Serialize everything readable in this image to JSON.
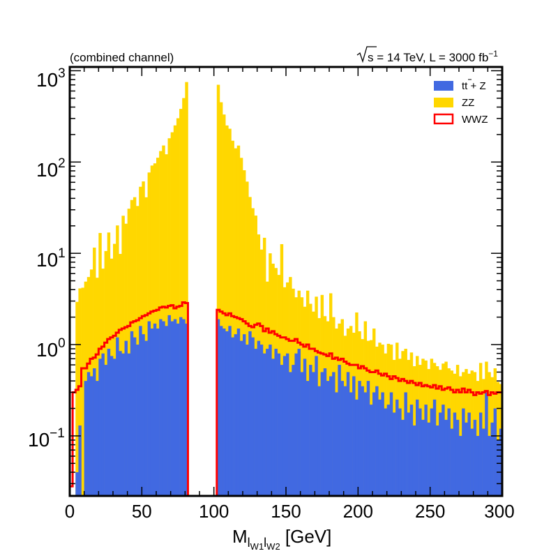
{
  "chart_data": {
    "type": "bar",
    "stacked": true,
    "log_y": true,
    "title_left": "(combined channel)",
    "title_right_prefix": "s",
    "title_right_text": " = 14 TeV, L = 3000 fb",
    "title_right_sup": "−1",
    "xlabel_main": "M",
    "xlabel_sub1": "l",
    "xlabel_subsub1": "W1",
    "xlabel_sub2": "l",
    "xlabel_subsub2": "W2",
    "xlabel_unit": " [GeV]",
    "xlim": [
      0,
      300
    ],
    "ylim": [
      0.022,
      1100
    ],
    "bin_width": 2,
    "x_ticks": [
      "0",
      "50",
      "100",
      "150",
      "200",
      "250",
      "300"
    ],
    "y_ticks": [
      {
        "base": "10",
        "exp": "3"
      },
      {
        "base": "10",
        "exp": "2"
      },
      {
        "base": "10",
        "exp": "1"
      },
      {
        "base": "10",
        "exp": "0"
      },
      {
        "base": "10",
        "exp": "−1"
      }
    ],
    "legend": {
      "position": "top-right",
      "items": [
        {
          "label_a": "t",
          "label_b": "t",
          "label_c": " + Z",
          "color": "#4169e1",
          "kind": "fill"
        },
        {
          "label_a": "ZZ",
          "label_b": "",
          "label_c": "",
          "color": "#ffd700",
          "kind": "fill"
        },
        {
          "label_a": "WWZ",
          "label_b": "",
          "label_c": "",
          "color": "#ff0000",
          "kind": "line"
        }
      ]
    },
    "series": [
      {
        "name": "ttZ",
        "color": "#4169e1",
        "values": [
          0,
          0,
          0.04,
          0.13,
          0,
          0.4,
          0.5,
          0.45,
          0.55,
          0.4,
          0.7,
          0.8,
          0.6,
          0.9,
          0.75,
          0.7,
          1.2,
          0.85,
          0.8,
          1.1,
          0.8,
          1.4,
          1.2,
          1.0,
          1.6,
          1.3,
          1.1,
          1.8,
          1.5,
          1.7,
          1.5,
          1.9,
          1.8,
          1.6,
          2.1,
          1.8,
          1.9,
          1.7,
          2.0,
          1.9,
          1.7,
          0,
          0,
          0,
          0,
          0,
          0,
          0,
          0,
          0,
          0,
          1.9,
          1.6,
          1.5,
          1.4,
          1.6,
          1.2,
          1.3,
          1.5,
          1.1,
          1.3,
          1.0,
          1.4,
          1.2,
          0.9,
          1.1,
          1.0,
          0.8,
          0.9,
          1.0,
          0.7,
          0.9,
          0.8,
          0.6,
          0.75,
          0.8,
          0.5,
          0.6,
          0.8,
          0.9,
          0.5,
          0.7,
          0.4,
          0.6,
          0.5,
          0.75,
          0.35,
          0.5,
          0.55,
          0.4,
          0.45,
          0.5,
          0.3,
          0.6,
          0.4,
          0.35,
          0.5,
          0.3,
          0.45,
          0.25,
          0.4,
          0.35,
          0.3,
          0.4,
          0.22,
          0.3,
          0.35,
          0.25,
          0.3,
          0.2,
          0.22,
          0.3,
          0.18,
          0.25,
          0.2,
          0.15,
          0.3,
          0.18,
          0.22,
          0.13,
          0.25,
          0.2,
          0.15,
          0.22,
          0.14,
          0.2,
          0.25,
          0.13,
          0.18,
          0.22,
          0.15,
          0.2,
          0.12,
          0.18,
          0.15,
          0.1,
          0.2,
          0.14,
          0.18,
          0.12,
          0.15,
          0.1,
          0.18,
          0.12,
          0.3,
          0.1,
          0.14,
          0.2,
          0.09,
          0.12
        ]
      },
      {
        "name": "ZZ",
        "color": "#ffd700",
        "values": [
          0,
          0,
          2.9,
          4.0,
          4.2,
          4.5,
          5.0,
          6.2,
          11.0,
          5.0,
          16.0,
          6.0,
          10.0,
          16.0,
          8.0,
          12.0,
          19.0,
          9.0,
          25.0,
          20.0,
          30.0,
          37.0,
          40.0,
          32.0,
          52.0,
          60.0,
          40.0,
          75.0,
          90.0,
          95.0,
          110.0,
          130.0,
          150.0,
          120.0,
          180.0,
          210.0,
          250.0,
          300.0,
          380.0,
          500.0,
          750.0,
          0,
          0,
          0,
          0,
          0,
          0,
          0,
          0,
          0,
          0,
          700.0,
          450.0,
          330.0,
          250.0,
          230.0,
          170.0,
          140.0,
          150.0,
          110.0,
          80.0,
          60.0,
          40.0,
          30.0,
          25.0,
          15.0,
          10.0,
          14.0,
          4.0,
          9.0,
          7.0,
          6.0,
          5.0,
          12.0,
          3.5,
          4.0,
          5.0,
          3.5,
          2.5,
          3.0,
          2.8,
          1.9,
          3.5,
          2.2,
          1.8,
          2.6,
          1.6,
          3.0,
          1.5,
          1.4,
          3.2,
          1.5,
          1.2,
          1.1,
          1.5,
          0.9,
          1.0,
          1.3,
          0.9,
          2.0,
          1.0,
          0.8,
          1.5,
          0.7,
          0.9,
          1.2,
          0.6,
          0.8,
          0.7,
          0.6,
          0.8,
          0.7,
          0.5,
          0.8,
          0.5,
          0.7,
          0.6,
          0.5,
          0.6,
          0.45,
          0.5,
          0.4,
          0.55,
          0.45,
          0.4,
          0.5,
          0.38,
          0.45,
          0.35,
          0.4,
          0.5,
          0.35,
          0.4,
          0.3,
          0.45,
          0.35,
          0.3,
          0.4,
          0.3,
          0.4,
          0.35,
          0.3,
          0.45,
          0.3,
          0.35,
          0.4,
          0.3,
          0.35,
          0.3,
          0.25,
          0.35,
          0.3
        ]
      },
      {
        "name": "WWZ",
        "color": "#ff0000",
        "values": [
          0.028,
          0.3,
          0.32,
          0.35,
          0.55,
          0.55,
          0.62,
          0.7,
          0.72,
          0.78,
          0.9,
          0.95,
          1.05,
          1.15,
          1.2,
          1.25,
          1.35,
          1.45,
          1.5,
          1.55,
          1.6,
          1.75,
          1.8,
          1.85,
          1.95,
          2.05,
          2.1,
          2.2,
          2.3,
          2.35,
          2.4,
          2.55,
          2.6,
          2.55,
          2.65,
          2.7,
          2.5,
          2.6,
          2.65,
          2.9,
          2.85,
          0,
          0,
          0,
          0,
          0,
          0,
          0,
          0,
          0,
          0,
          2.4,
          2.3,
          2.2,
          2.1,
          2.2,
          2.05,
          2.0,
          1.95,
          1.9,
          1.8,
          1.7,
          1.6,
          1.55,
          1.65,
          1.7,
          1.6,
          1.4,
          1.5,
          1.35,
          1.4,
          1.3,
          1.25,
          1.2,
          1.2,
          1.15,
          1.1,
          1.1,
          1.15,
          1.05,
          1.0,
          0.95,
          1.0,
          0.9,
          0.9,
          0.85,
          0.82,
          0.8,
          0.78,
          0.75,
          0.8,
          0.7,
          0.72,
          0.68,
          0.7,
          0.65,
          0.62,
          0.6,
          0.6,
          0.6,
          0.55,
          0.58,
          0.55,
          0.52,
          0.5,
          0.5,
          0.52,
          0.48,
          0.46,
          0.48,
          0.45,
          0.42,
          0.45,
          0.43,
          0.4,
          0.42,
          0.4,
          0.38,
          0.4,
          0.38,
          0.36,
          0.38,
          0.35,
          0.36,
          0.35,
          0.34,
          0.36,
          0.33,
          0.35,
          0.32,
          0.33,
          0.34,
          0.32,
          0.3,
          0.32,
          0.3,
          0.33,
          0.3,
          0.32,
          0.3,
          0.28,
          0.3,
          0.29,
          0.3,
          0.31,
          0.28,
          0.3,
          0.29,
          0.3,
          0.3
        ]
      }
    ]
  }
}
